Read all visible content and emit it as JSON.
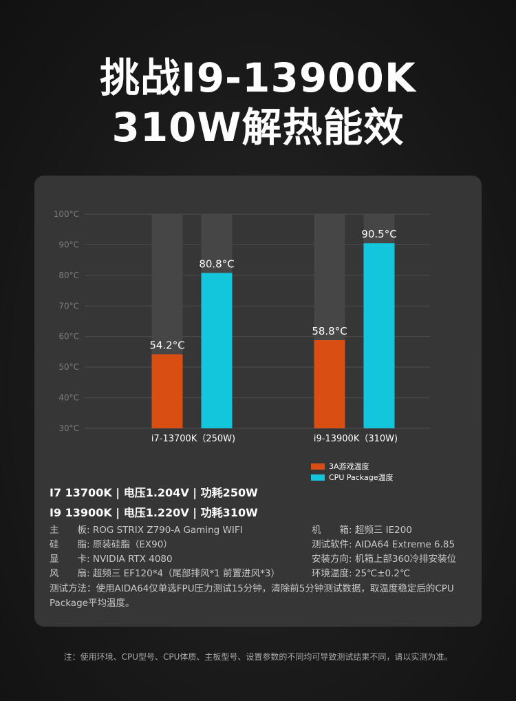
{
  "title_line1": "挑战I9-13900K",
  "title_line2": "310W解热能效",
  "chart_data": {
    "type": "bar",
    "categories": [
      "i7-13700K（250W)",
      "i9-13900K（310W)"
    ],
    "series": [
      {
        "name": "3A游戏温度",
        "color": "#d94e12",
        "values": [
          54.2,
          58.8
        ],
        "labels": [
          "54.2°C",
          "58.8°C"
        ]
      },
      {
        "name": "CPU Package温度",
        "color": "#13c6dc",
        "values": [
          80.8,
          90.5
        ],
        "labels": [
          "80.8°C",
          "90.5°C"
        ]
      }
    ],
    "ylim": [
      30,
      100
    ],
    "yticks": [
      100,
      90,
      80,
      70,
      60,
      50,
      40,
      30
    ],
    "ytick_labels": [
      "100°C",
      "90°C",
      "80°C",
      "70°C",
      "60°C",
      "50°C",
      "40°C",
      "30°C"
    ],
    "grid": true,
    "legend": "bottom-right",
    "background_bar_color": "#464646"
  },
  "specs": {
    "line1": "I7 13700K | 电压1.204V  | 功耗250W",
    "line2": "I9 13900K | 电压1.220V  | 功耗310W"
  },
  "info": {
    "motherboard": {
      "label": "主　　板:",
      "value": " ROG STRIX Z790-A Gaming WIFI"
    },
    "paste": {
      "label": "硅　　脂:",
      "value": " 原装硅脂（EX90）"
    },
    "gpu": {
      "label": "显　　卡:",
      "value": " NVIDIA RTX 4080"
    },
    "fan": {
      "label": "风　　扇:",
      "value": " 超频三 EF120*4（尾部排风*1 前置进风*3）"
    },
    "case": {
      "label": "机　　箱:",
      "value": " 超频三 IE200"
    },
    "software": {
      "label": "测试软件:",
      "value": " AIDA64 Extreme 6.85"
    },
    "mount": {
      "label": "安装方向:",
      "value": " 机箱上部360冷排安装位"
    },
    "ambient": {
      "label": "环境温度:",
      "value": " 25℃±0.2℃"
    },
    "method": "测试方法：使用AIDA64仅单选FPU压力测试15分钟，清除前5分钟测试数据，取温度稳定后的CPU Package平均温度。"
  },
  "footnote": "注：使用环境、CPU型号、CPU体质、主板型号、设置参数的不同均可导致测试结果不同，请以实测为准。"
}
